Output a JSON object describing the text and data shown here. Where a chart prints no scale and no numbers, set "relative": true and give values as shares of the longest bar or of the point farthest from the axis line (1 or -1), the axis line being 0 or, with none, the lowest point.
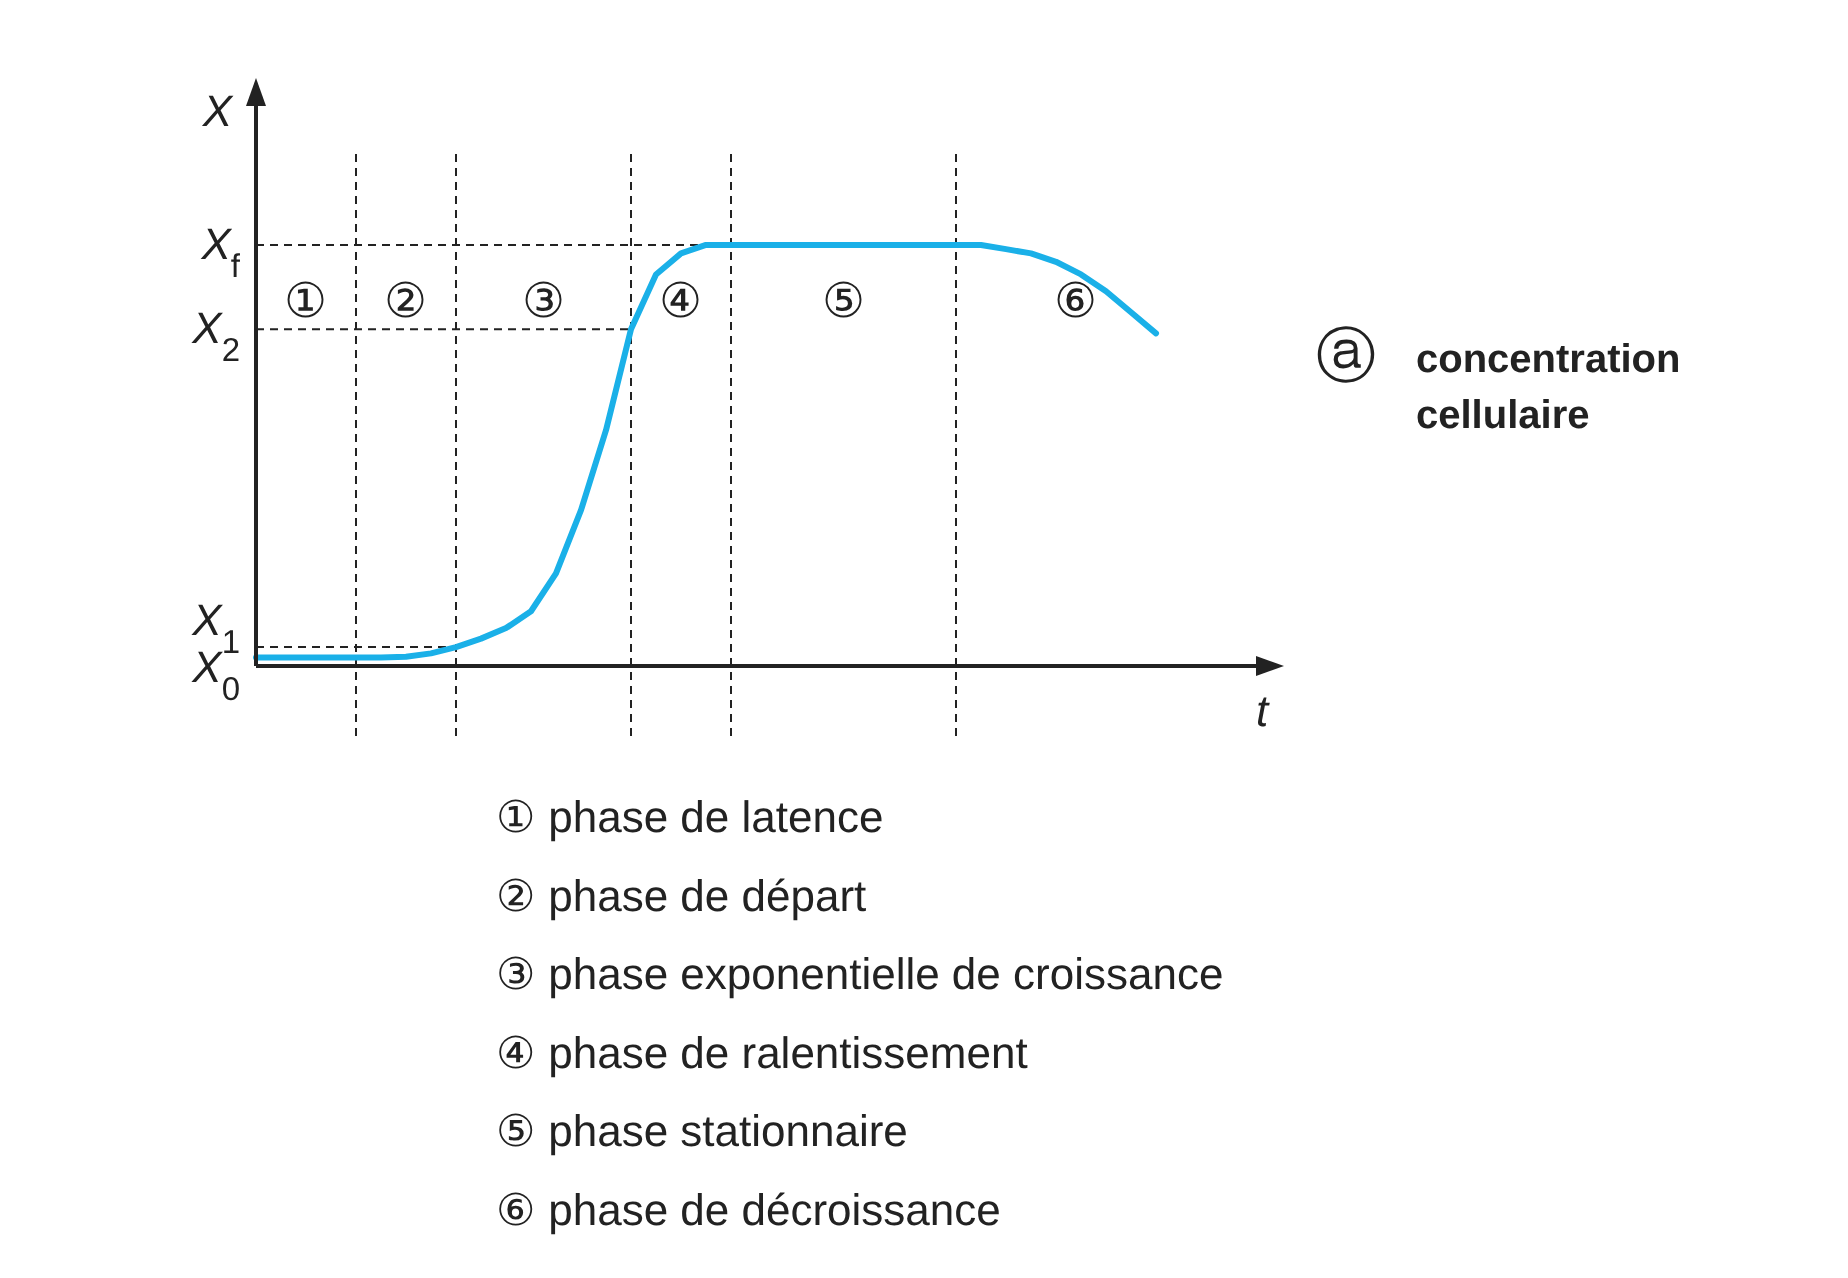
{
  "chart_data": {
    "type": "line",
    "xlabel": "t",
    "ylabel": "X",
    "relative": true,
    "categories": [
      null,
      null,
      null,
      null,
      null,
      null,
      null,
      null,
      null,
      null,
      null,
      null,
      null,
      null,
      null,
      null,
      null,
      null,
      null,
      null,
      null,
      null,
      null,
      null,
      null,
      null,
      null,
      null,
      null,
      null,
      null,
      null,
      null,
      null,
      null,
      null,
      null,
      null,
      null,
      null,
      null
    ],
    "series": [
      {
        "color": "#1ab0e8",
        "values": [
          0.02,
          0.02,
          0.02,
          0.02,
          0.02,
          0.02,
          0.022,
          0.03,
          0.045,
          0.065,
          0.09,
          0.13,
          0.22,
          0.37,
          0.56,
          0.8,
          0.93,
          0.98,
          1,
          1,
          1,
          1,
          1,
          1,
          1,
          1,
          1,
          1,
          1,
          1,
          0.99,
          0.98,
          0.96,
          0.93,
          0.89,
          0.84,
          0.79,
          null,
          null,
          null,
          null
        ]
      }
    ],
    "grid": true,
    "marker": "none",
    "line_style": "solid",
    "annotations": [
      "X$_{0}$",
      "X$_{1}$",
      "X$_{2}$",
      "X$_{f}$",
      "①",
      "②",
      "③",
      "④",
      "⑤",
      "⑥",
      "ⓐ",
      "concentration cellulaire",
      "① phase de latence",
      "② phase de départ",
      "③ phase exponentielle de croissance",
      "④ phase de ralentissement",
      "⑤ phase stationnaire",
      "⑥ phase de décroissance"
    ]
  }
}
